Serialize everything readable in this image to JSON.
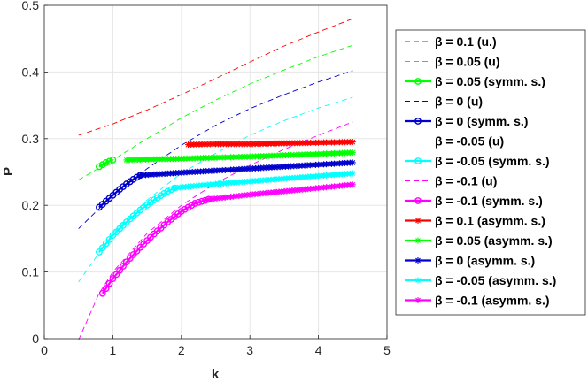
{
  "chart_data": {
    "type": "line",
    "xlabel": "k",
    "ylabel": "P",
    "xlim": [
      0,
      5
    ],
    "ylim": [
      0,
      0.5
    ],
    "xticks": [
      "0",
      "1",
      "2",
      "3",
      "4",
      "5"
    ],
    "yticks": [
      "0",
      "0.1",
      "0.2",
      "0.3",
      "0.4",
      "0.5"
    ],
    "grid": true,
    "legend_position": "right",
    "series": [
      {
        "name": "β = 0.1 (u.)",
        "color": "#ff0000",
        "style": "dashed",
        "x": [
          0.5,
          1,
          1.5,
          2,
          2.5,
          3,
          3.5,
          4,
          4.5
        ],
        "y": [
          0.305,
          0.322,
          0.343,
          0.366,
          0.39,
          0.415,
          0.439,
          0.46,
          0.48
        ]
      },
      {
        "name": "β = 0.05 (u)",
        "color": "#00ff00",
        "style": "dashed",
        "x": [
          0.5,
          1,
          1.5,
          2,
          2.5,
          3,
          3.5,
          4,
          4.5
        ],
        "y": [
          0.238,
          0.268,
          0.3,
          0.331,
          0.358,
          0.382,
          0.403,
          0.423,
          0.44
        ]
      },
      {
        "name": "β = 0.05 (symm. s.)",
        "color": "#00ff00",
        "style": "solid",
        "marker": "circle",
        "x": [
          0.8,
          0.85,
          0.9,
          0.95,
          1.0
        ],
        "y": [
          0.258,
          0.261,
          0.264,
          0.266,
          0.268
        ]
      },
      {
        "name": "β = 0 (u)",
        "color": "#0000cc",
        "style": "dashed",
        "x": [
          0.5,
          1,
          1.5,
          2,
          2.5,
          3,
          3.5,
          4,
          4.5
        ],
        "y": [
          0.165,
          0.215,
          0.255,
          0.29,
          0.32,
          0.345,
          0.366,
          0.385,
          0.402
        ]
      },
      {
        "name": "β = 0 (symm. s.)",
        "color": "#0000cc",
        "style": "solid",
        "marker": "circle",
        "x": [
          0.8,
          0.9,
          1.0,
          1.1,
          1.2,
          1.3,
          1.4
        ],
        "y": [
          0.197,
          0.206,
          0.215,
          0.224,
          0.232,
          0.239,
          0.245
        ]
      },
      {
        "name": "β = -0.05 (u)",
        "color": "#00ffff",
        "style": "dashed",
        "x": [
          0.5,
          1,
          1.5,
          2,
          2.5,
          3,
          3.5,
          4,
          4.5
        ],
        "y": [
          0.085,
          0.158,
          0.208,
          0.248,
          0.278,
          0.305,
          0.327,
          0.346,
          0.362
        ]
      },
      {
        "name": "β = -0.05 (symm. s.)",
        "color": "#00ffff",
        "style": "solid",
        "marker": "circle",
        "x": [
          0.8,
          1.0,
          1.2,
          1.4,
          1.6,
          1.8,
          1.9
        ],
        "y": [
          0.13,
          0.155,
          0.175,
          0.193,
          0.208,
          0.221,
          0.226
        ]
      },
      {
        "name": "β = -0.1 (u)",
        "color": "#ff00ff",
        "style": "dashed",
        "x": [
          0.5,
          0.8,
          1,
          1.5,
          2,
          2.5,
          3,
          3.5,
          4,
          4.5
        ],
        "y": [
          -0.002,
          0.068,
          0.1,
          0.158,
          0.2,
          0.233,
          0.26,
          0.284,
          0.305,
          0.325
        ]
      },
      {
        "name": "β = -0.1 (symm. s.)",
        "color": "#ff00ff",
        "style": "solid",
        "marker": "circle",
        "x": [
          0.85,
          1.0,
          1.2,
          1.4,
          1.6,
          1.8,
          2.0,
          2.2,
          2.4
        ],
        "y": [
          0.068,
          0.09,
          0.115,
          0.137,
          0.157,
          0.175,
          0.191,
          0.203,
          0.209
        ]
      },
      {
        "name": "β = 0.1 (asymm. s.)",
        "color": "#ff0000",
        "style": "solid",
        "marker": "asterisk",
        "x": [
          2.1,
          2.5,
          3,
          3.5,
          4,
          4.5
        ],
        "y": [
          0.291,
          0.292,
          0.292,
          0.293,
          0.294,
          0.295
        ]
      },
      {
        "name": "β = 0.05 (asymm. s.)",
        "color": "#00ff00",
        "style": "solid",
        "marker": "asterisk",
        "x": [
          1.2,
          2,
          3,
          4,
          4.5
        ],
        "y": [
          0.268,
          0.27,
          0.273,
          0.277,
          0.279
        ]
      },
      {
        "name": "β = 0 (asymm. s.)",
        "color": "#0000cc",
        "style": "solid",
        "marker": "asterisk",
        "x": [
          1.4,
          2,
          3,
          4,
          4.5
        ],
        "y": [
          0.245,
          0.249,
          0.255,
          0.261,
          0.264
        ]
      },
      {
        "name": "β = -0.05 (asymm. s.)",
        "color": "#00ffff",
        "style": "solid",
        "marker": "asterisk",
        "x": [
          1.9,
          2.5,
          3,
          3.5,
          4,
          4.5
        ],
        "y": [
          0.226,
          0.232,
          0.236,
          0.24,
          0.244,
          0.248
        ]
      },
      {
        "name": "β = -0.1 (asymm. s.)",
        "color": "#ff00ff",
        "style": "solid",
        "marker": "asterisk",
        "x": [
          2.4,
          3,
          3.5,
          4,
          4.5
        ],
        "y": [
          0.209,
          0.216,
          0.221,
          0.226,
          0.231
        ]
      }
    ],
    "legend_order": [
      0,
      1,
      2,
      3,
      4,
      5,
      6,
      7,
      8,
      9,
      10,
      11,
      12,
      13
    ]
  }
}
